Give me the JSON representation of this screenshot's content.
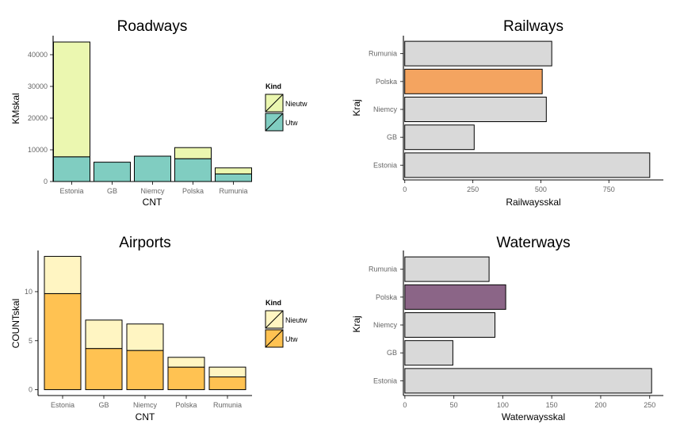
{
  "chart_data": [
    {
      "id": "roadways",
      "type": "bar",
      "stacked": true,
      "title": "Roadways",
      "xlabel": "CNT",
      "ylabel": "KMskal",
      "categories": [
        "Estonia",
        "GB",
        "Niemcy",
        "Polska",
        "Rumunia"
      ],
      "series": [
        {
          "name": "Utw",
          "values": [
            7800,
            6100,
            8000,
            7200,
            2400
          ],
          "color": "#80CDC1"
        },
        {
          "name": "Nieutw",
          "values": [
            36200,
            0,
            0,
            3500,
            1900
          ],
          "color": "#EBF7B0"
        }
      ],
      "ylim": [
        0,
        46000
      ],
      "yticks": [
        0,
        10000,
        20000,
        30000,
        40000
      ],
      "yticklabels": [
        "0",
        "10000",
        "20000",
        "30000",
        "40000"
      ],
      "legend": {
        "title": "Kind",
        "items": [
          "Nieutw",
          "Utw"
        ],
        "placement": "right"
      },
      "grid": false
    },
    {
      "id": "railways",
      "type": "bar",
      "orientation": "horizontal",
      "title": "Railways",
      "xlabel": "Railwaysskal",
      "ylabel": "Kraj",
      "categories": [
        "Estonia",
        "GB",
        "Niemcy",
        "Polska",
        "Rumunia"
      ],
      "values": [
        900,
        255,
        520,
        505,
        540
      ],
      "colors": [
        "#D9D9D9",
        "#D9D9D9",
        "#D9D9D9",
        "#F4A460",
        "#D9D9D9"
      ],
      "xlim": [
        -5,
        950
      ],
      "xticks": [
        0,
        250,
        500,
        750
      ],
      "xticklabels": [
        "0",
        "250",
        "500",
        "750"
      ],
      "grid": false
    },
    {
      "id": "airports",
      "type": "bar",
      "stacked": true,
      "title": "Airports",
      "xlabel": "CNT",
      "ylabel": "COUNTskal",
      "categories": [
        "Estonia",
        "GB",
        "Niemcy",
        "Polska",
        "Rumunia"
      ],
      "series": [
        {
          "name": "Utw",
          "values": [
            9.8,
            4.2,
            4.0,
            2.3,
            1.3
          ],
          "color": "#FFC252"
        },
        {
          "name": "Nieutw",
          "values": [
            3.8,
            2.9,
            2.7,
            1.0,
            1.0
          ],
          "color": "#FFF5C2"
        }
      ],
      "ylim": [
        -0.6,
        14.2
      ],
      "yticks": [
        0,
        5,
        10
      ],
      "yticklabels": [
        "0",
        "5",
        "10"
      ],
      "legend": {
        "title": "Kind",
        "items": [
          "Nieutw",
          "Utw"
        ],
        "placement": "right"
      },
      "grid": false
    },
    {
      "id": "waterways",
      "type": "bar",
      "orientation": "horizontal",
      "title": "Waterways",
      "xlabel": "Waterwaysskal",
      "ylabel": "Kraj",
      "categories": [
        "Estonia",
        "GB",
        "Niemcy",
        "Polska",
        "Rumunia"
      ],
      "values": [
        252,
        49,
        92,
        103,
        86
      ],
      "colors": [
        "#D9D9D9",
        "#D9D9D9",
        "#D9D9D9",
        "#8B6587",
        "#D9D9D9"
      ],
      "xlim": [
        -1.5,
        264
      ],
      "xticks": [
        0,
        50,
        100,
        150,
        200,
        250
      ],
      "xticklabels": [
        "0",
        "50",
        "100",
        "150",
        "200",
        "250"
      ],
      "grid": false
    }
  ]
}
